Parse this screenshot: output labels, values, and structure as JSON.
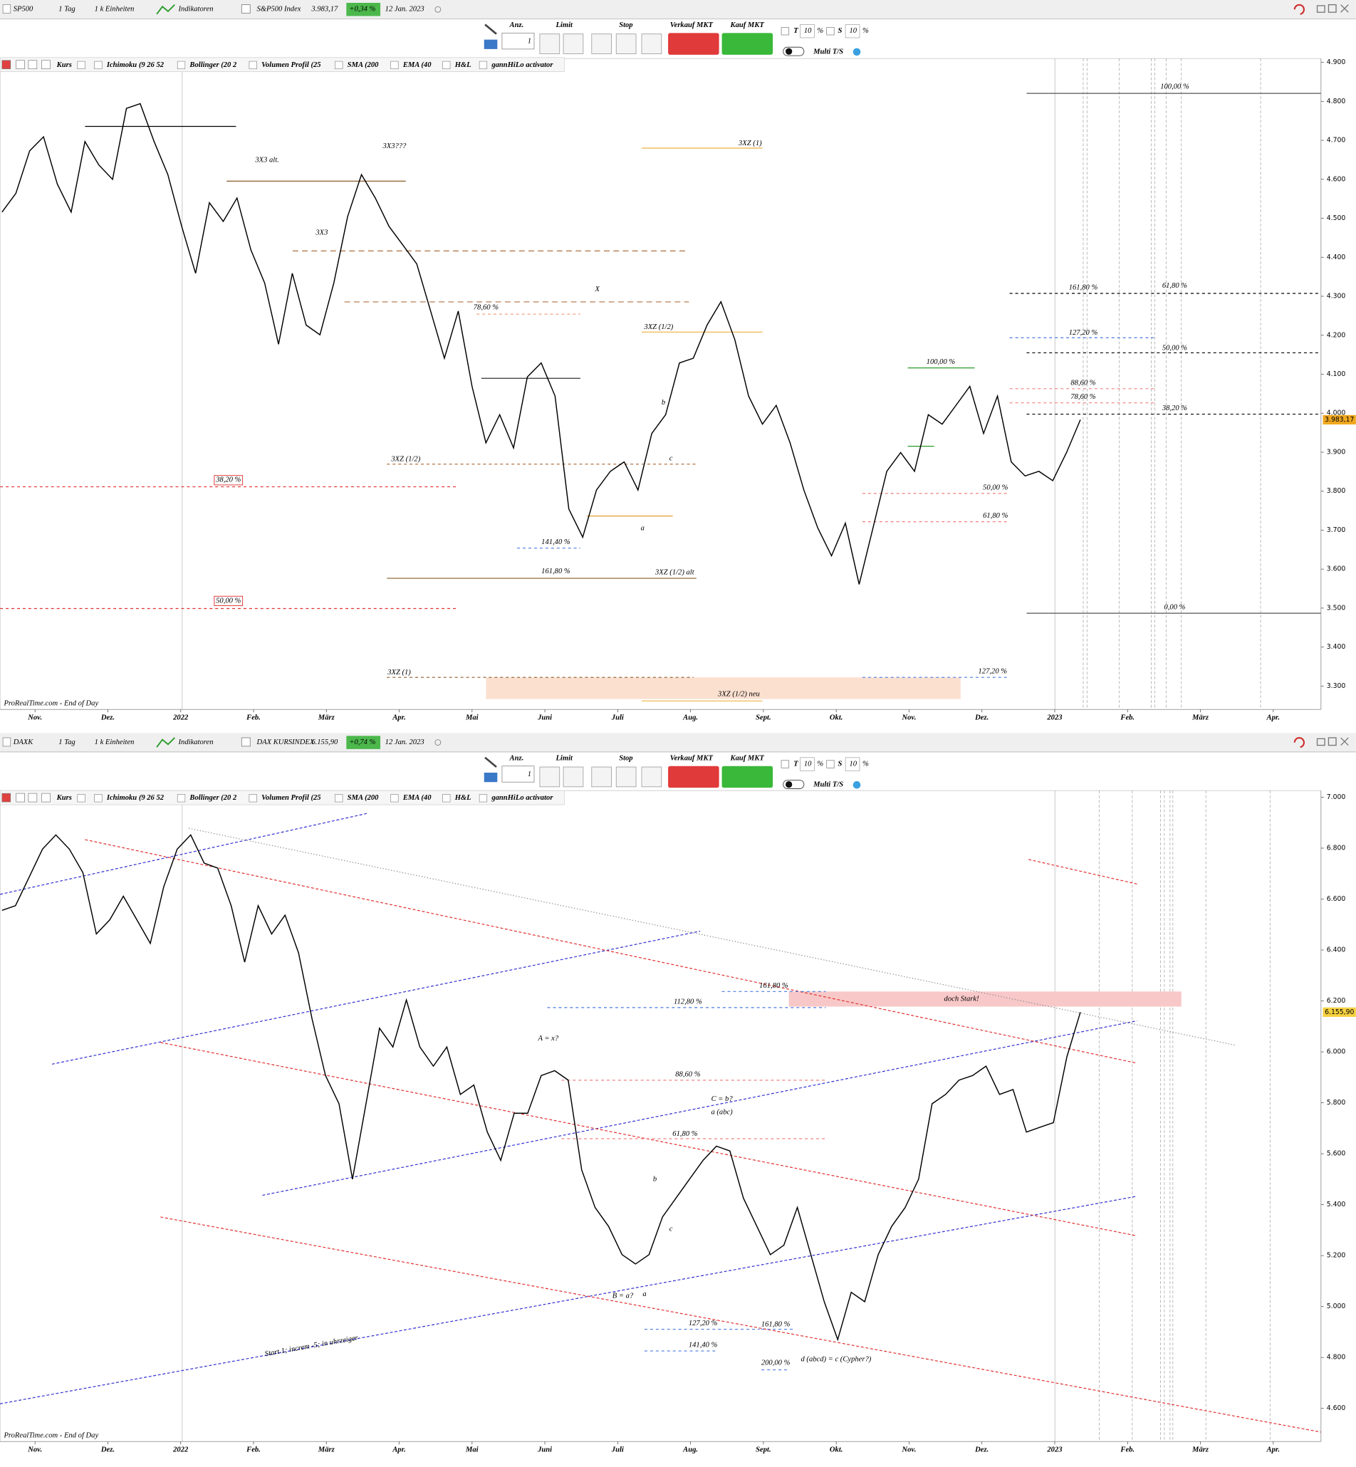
{
  "toolbars": [
    {
      "symbol": "SP500",
      "period": "1 Tag",
      "units": "1 k Einheiten",
      "indicators_button": "Indikatoren",
      "instrument": "S&P500 Index",
      "price": "3.983,17",
      "change": "+0,34 %",
      "date": "12 Jan. 2023",
      "order": {
        "qty_label": "Anz.",
        "qty": "1",
        "limit": "Limit",
        "stop": "Stop",
        "sell": "Verkauf MKT",
        "buy": "Kauf MKT",
        "t": "T",
        "t_val": "10",
        "t_unit": "%",
        "s": "S",
        "s_val": "10",
        "s_unit": "%",
        "multi": "Multi T/S"
      },
      "indicator_row": [
        "Kurs",
        "Ichimoku (9 26 52",
        "Bollinger (20 2",
        "Volumen Profil (25",
        "SMA (200",
        "EMA (40",
        "H&L",
        "gannHiLo activator"
      ],
      "source": "ProRealTime.com - End of Day"
    },
    {
      "symbol": "DAXK",
      "period": "1 Tag",
      "units": "1 k Einheiten",
      "indicators_button": "Indikatoren",
      "instrument": "DAX KURSINDEX",
      "price": "6.155,90",
      "change": "+0,74 %",
      "date": "12 Jan. 2023",
      "order": {
        "qty_label": "Anz.",
        "qty": "1",
        "limit": "Limit",
        "stop": "Stop",
        "sell": "Verkauf MKT",
        "buy": "Kauf MKT",
        "t": "T",
        "t_val": "10",
        "t_unit": "%",
        "s": "S",
        "s_val": "10",
        "s_unit": "%",
        "multi": "Multi T/S"
      },
      "indicator_row": [
        "Kurs",
        "Ichimoku (9 26 52",
        "Bollinger (20 2",
        "Volumen Profil (25",
        "SMA (200",
        "EMA (40",
        "H&L",
        "gannHiLo activator"
      ],
      "source": "ProRealTime.com - End of Day"
    }
  ],
  "chart_data": [
    {
      "type": "line",
      "color": "#000000",
      "values": [
        4516,
        4564,
        4673,
        4709,
        4588,
        4516,
        4697,
        4637,
        4600,
        4782,
        4794,
        4697,
        4612,
        4479,
        4359,
        4540,
        4492,
        4552,
        4419,
        4334,
        4177,
        4359,
        4226,
        4201,
        4334,
        4504,
        4612,
        4552,
        4479,
        4431,
        4383,
        4262,
        4141,
        4262,
        4069,
        3924,
        3996,
        3911,
        4093,
        4129,
        4044,
        3754,
        3682,
        3803,
        3851,
        3875,
        3803,
        3948,
        3996,
        4129,
        4141,
        4226,
        4286,
        4189,
        4044,
        3972,
        4020,
        3924,
        3803,
        3706,
        3634,
        3718,
        3561,
        3706,
        3851,
        3899,
        3851,
        3996,
        3972,
        4020,
        4069,
        3948,
        4044,
        3875,
        3839,
        3851,
        3827,
        3899,
        3983.17
      ],
      "ylim": [
        3240,
        4910
      ],
      "yticks": [
        {
          "value": 3300,
          "label": "3.300"
        },
        {
          "value": 3400,
          "label": "3.400"
        },
        {
          "value": 3500,
          "label": "3.500"
        },
        {
          "value": 3600,
          "label": "3.600"
        },
        {
          "value": 3700,
          "label": "3.700"
        },
        {
          "value": 3800,
          "label": "3.800"
        },
        {
          "value": 3900,
          "label": "3.900"
        },
        {
          "value": 4000,
          "label": "4.000"
        },
        {
          "value": 4100,
          "label": "4.100"
        },
        {
          "value": 4200,
          "label": "4.200"
        },
        {
          "value": 4300,
          "label": "4.300"
        },
        {
          "value": 4400,
          "label": "4.400"
        },
        {
          "value": 4500,
          "label": "4.500"
        },
        {
          "value": 4600,
          "label": "4.600"
        },
        {
          "value": 4700,
          "label": "4.700"
        },
        {
          "value": 4800,
          "label": "4.800"
        },
        {
          "value": 4900,
          "label": "4.900"
        }
      ],
      "xticks": [
        "Nov.",
        "Dez.",
        "2022",
        "Feb.",
        "März",
        "Apr.",
        "Mai",
        "Juni",
        "Juli",
        "Aug.",
        "Sept.",
        "Okt.",
        "Nov.",
        "Dez.",
        "2023",
        "Feb.",
        "März",
        "Apr."
      ],
      "last_price": {
        "value": 3983.17,
        "label": "3.983,17"
      },
      "annotations": [
        "3X3 alt.",
        "3X3???",
        "3X3",
        "X",
        "3XZ (1)",
        "3XZ (1/2)",
        "3XZ (1/2)",
        "3XZ (1/2) alt",
        "3XZ (1)",
        "3XZ (1/2) neu",
        "38,20 %",
        "50,00 %",
        "78,60 %",
        "141,40 %",
        "161,80 %",
        "100,00 %",
        "161,80 %",
        "127,20 %",
        "88,60 %",
        "78,60 %",
        "50,00 %",
        "61,80 %",
        "127,20 %",
        "100,00 %",
        "61,80 %",
        "50,00 %",
        "38,20 %",
        "0,00 %",
        "b",
        "c",
        "a"
      ]
    },
    {
      "type": "line",
      "color": "#000000",
      "values": [
        6556,
        6574,
        6685,
        6796,
        6852,
        6796,
        6704,
        6463,
        6519,
        6611,
        6519,
        6426,
        6648,
        6796,
        6852,
        6741,
        6722,
        6574,
        6352,
        6574,
        6463,
        6537,
        6389,
        6130,
        5907,
        5796,
        5500,
        5796,
        6093,
        6019,
        6204,
        6019,
        5944,
        6019,
        5833,
        5870,
        5685,
        5574,
        5759,
        5759,
        5907,
        5926,
        5889,
        5537,
        5389,
        5315,
        5204,
        5167,
        5204,
        5352,
        5426,
        5500,
        5574,
        5630,
        5611,
        5426,
        5315,
        5204,
        5241,
        5389,
        5204,
        5019,
        4870,
        5056,
        5019,
        5204,
        5315,
        5389,
        5500,
        5796,
        5833,
        5889,
        5907,
        5944,
        5833,
        5852,
        5685,
        5704,
        5722,
        5981,
        6155.9
      ],
      "ylim": [
        4470,
        7026
      ],
      "yticks": [
        {
          "value": 4600,
          "label": "4.600"
        },
        {
          "value": 4800,
          "label": "4.800"
        },
        {
          "value": 5000,
          "label": "5.000"
        },
        {
          "value": 5200,
          "label": "5.200"
        },
        {
          "value": 5400,
          "label": "5.400"
        },
        {
          "value": 5600,
          "label": "5.600"
        },
        {
          "value": 5800,
          "label": "5.800"
        },
        {
          "value": 6000,
          "label": "6.000"
        },
        {
          "value": 6200,
          "label": "6.200"
        },
        {
          "value": 6400,
          "label": "6.400"
        },
        {
          "value": 6600,
          "label": "6.600"
        },
        {
          "value": 6800,
          "label": "6.800"
        },
        {
          "value": 7000,
          "label": "7.000"
        }
      ],
      "xticks": [
        "Nov.",
        "Dez.",
        "2022",
        "Feb.",
        "März",
        "Apr.",
        "Mai",
        "Juni",
        "Juli",
        "Aug.",
        "Sept.",
        "Okt.",
        "Nov.",
        "Dez.",
        "2023",
        "Feb.",
        "März",
        "Apr."
      ],
      "last_price": {
        "value": 6155.9,
        "label": "6.155,90"
      },
      "annotations": [
        "doch Stark!",
        "161,80 %",
        "112,80 %",
        "88,60 %",
        "61,80 %",
        "127,20 %",
        "161,80 %",
        "141,40 %",
        "200,00 %",
        "A = x?",
        "C = b?",
        "a (abc)",
        "B = a?",
        "d (abcd) = c (Cypher?)",
        "Start 1; increm -5; in uhrzeiger",
        "b",
        "c",
        "a"
      ]
    }
  ]
}
